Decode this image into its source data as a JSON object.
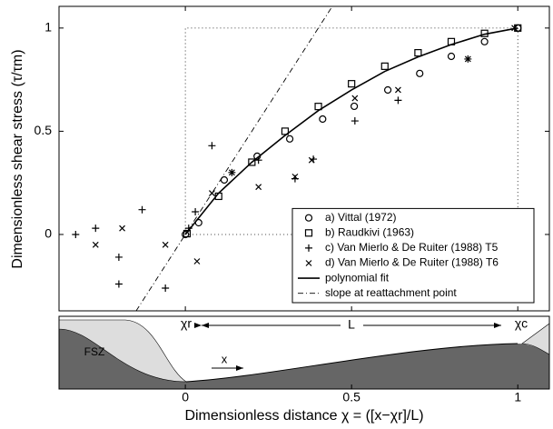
{
  "chart_data": {
    "type": "scatter",
    "ylabel": "Dimensionless shear stress (τ/τm)",
    "xlabel": "Dimensionless distance χ = ([x−χr]/L)",
    "xlim": [
      -0.38,
      1.095
    ],
    "ylim": [
      -0.37,
      1.105
    ],
    "xticks": [
      0,
      0.5,
      1
    ],
    "yticks": [
      0,
      0.5,
      1
    ],
    "legend": "lower right",
    "series": [
      {
        "name": "a) Vittal (1972)",
        "color": "#000000",
        "marker": "circle",
        "x": [
          0,
          0.04,
          0.117,
          0.216,
          0.314,
          0.413,
          0.508,
          0.609,
          0.705,
          0.8,
          0.9,
          1
        ],
        "values": [
          0,
          0.057,
          0.264,
          0.379,
          0.463,
          0.559,
          0.621,
          0.7,
          0.78,
          0.863,
          0.934,
          1
        ]
      },
      {
        "name": "b) Raudkivi (1963)",
        "color": "#000000",
        "marker": "square",
        "x": [
          0.005,
          0.1,
          0.2,
          0.3,
          0.4,
          0.5,
          0.6,
          0.7,
          0.8,
          0.9,
          1
        ],
        "values": [
          0.004,
          0.185,
          0.35,
          0.5,
          0.62,
          0.73,
          0.815,
          0.88,
          0.934,
          0.974,
          1
        ]
      },
      {
        "name": "c) Van Mierlo & De Ruiter (1988) T5",
        "color": "#000000",
        "marker": "plus",
        "x": [
          -0.33,
          -0.27,
          -0.13,
          -0.2,
          -0.2,
          -0.06,
          0.01,
          0.03,
          0.08,
          0.14,
          0.22,
          0.33,
          0.385,
          0.51,
          0.64,
          0.85
        ],
        "values": [
          0,
          0.03,
          0.12,
          -0.11,
          -0.24,
          -0.26,
          0.03,
          0.11,
          0.43,
          0.3,
          0.36,
          0.27,
          0.365,
          0.55,
          0.65,
          0.85
        ]
      },
      {
        "name": "d) Van Mierlo & De Ruiter (1988) T6",
        "color": "#000000",
        "marker": "cross",
        "x": [
          -0.27,
          -0.19,
          -0.06,
          0.035,
          0.08,
          0.14,
          0.22,
          0.33,
          0.38,
          0.51,
          0.64,
          0.85,
          0.99
        ],
        "values": [
          -0.05,
          0.03,
          -0.05,
          -0.13,
          0.2,
          0.3,
          0.23,
          0.28,
          0.36,
          0.66,
          0.7,
          0.85,
          1
        ]
      },
      {
        "name": "polynomial fit",
        "color": "#000000",
        "style": "solid",
        "x": [
          0,
          0.1,
          0.2,
          0.3,
          0.4,
          0.5,
          0.6,
          0.7,
          0.8,
          0.9,
          1
        ],
        "values": [
          0,
          0.2,
          0.35,
          0.48,
          0.6,
          0.7,
          0.79,
          0.86,
          0.92,
          0.97,
          1
        ]
      },
      {
        "name": "slope at reattachment point",
        "color": "#000000",
        "style": "dashdot",
        "x": [
          -0.148,
          0.442
        ],
        "values": [
          -0.37,
          1.105
        ]
      }
    ],
    "reference_box": {
      "x": [
        0,
        1,
        1,
        0,
        0
      ],
      "y": [
        0,
        0,
        1,
        1,
        0
      ]
    },
    "sketch": {
      "chi_r": "χr",
      "chi_c": "χc",
      "length": "L",
      "fsz": "FSZ",
      "x": "x"
    }
  }
}
